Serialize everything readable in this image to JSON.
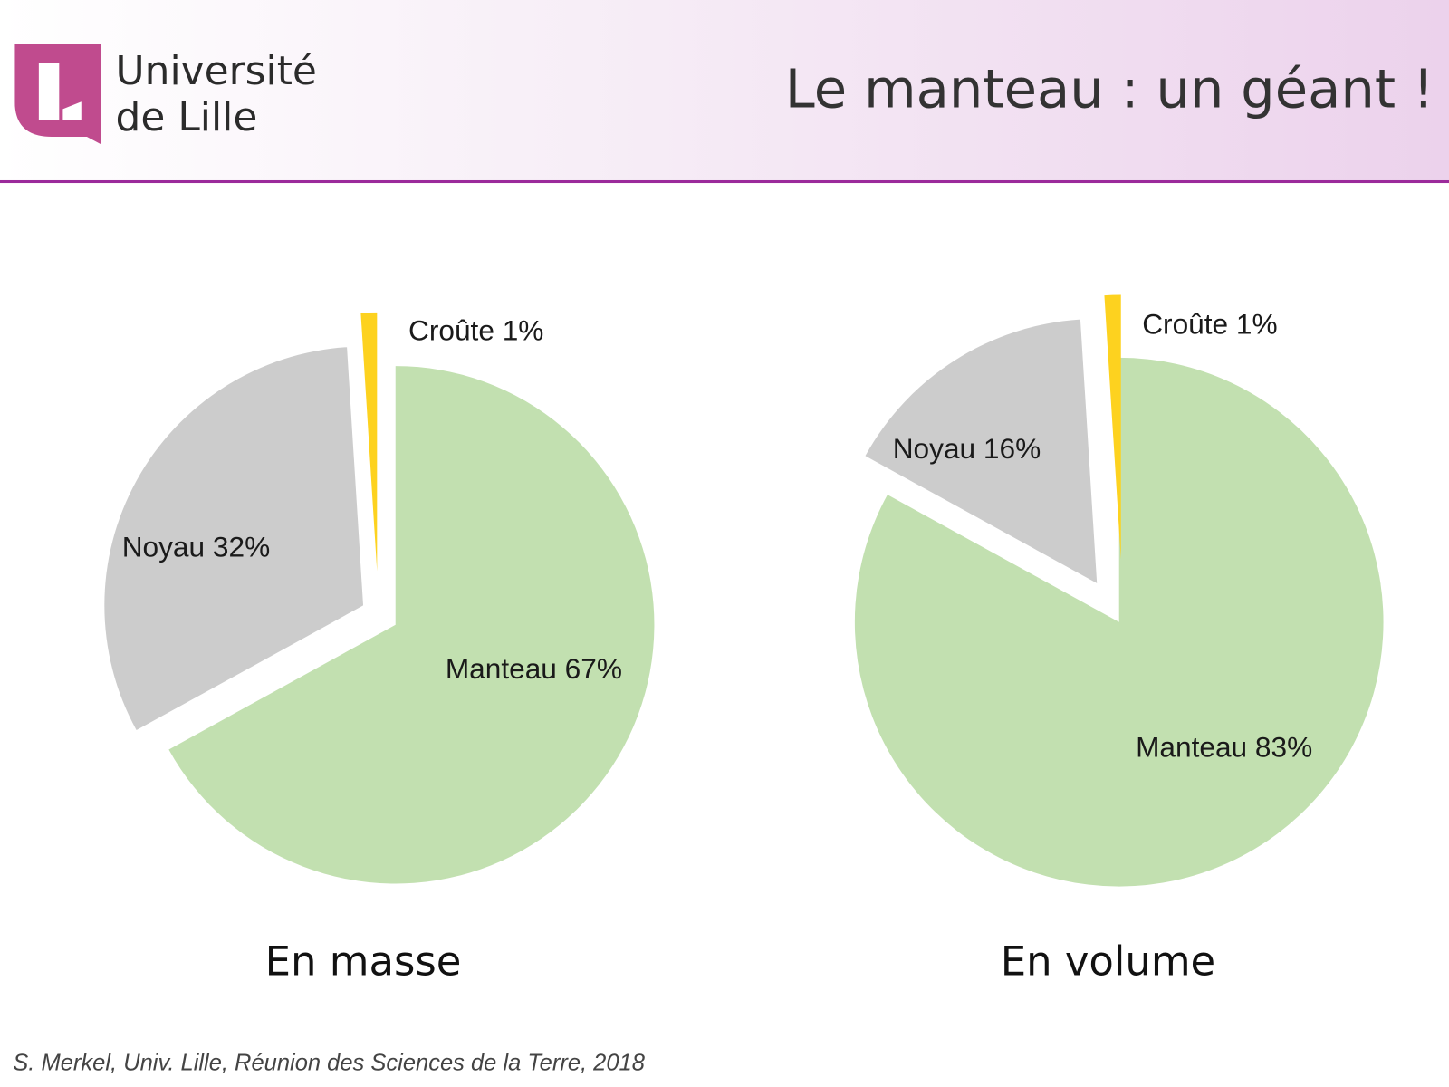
{
  "header": {
    "logo_text_line1": "Université",
    "logo_text_line2": "de Lille",
    "title": "Le manteau : un géant !"
  },
  "colors": {
    "manteau": "#c2e0b0",
    "noyau": "#cccccc",
    "croute": "#fdd21f",
    "accent": "#9b2a9b",
    "logo": "#c04b8e"
  },
  "chart_data": [
    {
      "type": "pie",
      "title": "En masse",
      "categories": [
        "Manteau",
        "Noyau",
        "Croûte"
      ],
      "values": [
        67,
        32,
        1
      ],
      "labels": [
        "Manteau 67%",
        "Noyau 32%",
        "Croûte 1%"
      ],
      "exploded": [
        "Noyau",
        "Croûte"
      ]
    },
    {
      "type": "pie",
      "title": "En volume",
      "categories": [
        "Manteau",
        "Noyau",
        "Croûte"
      ],
      "values": [
        83,
        16,
        1
      ],
      "labels": [
        "Manteau 83%",
        "Noyau 16%",
        "Croûte 1%"
      ],
      "exploded": [
        "Noyau",
        "Croûte"
      ]
    }
  ],
  "footer": "S. Merkel, Univ. Lille, Réunion des Sciences de la Terre, 2018"
}
